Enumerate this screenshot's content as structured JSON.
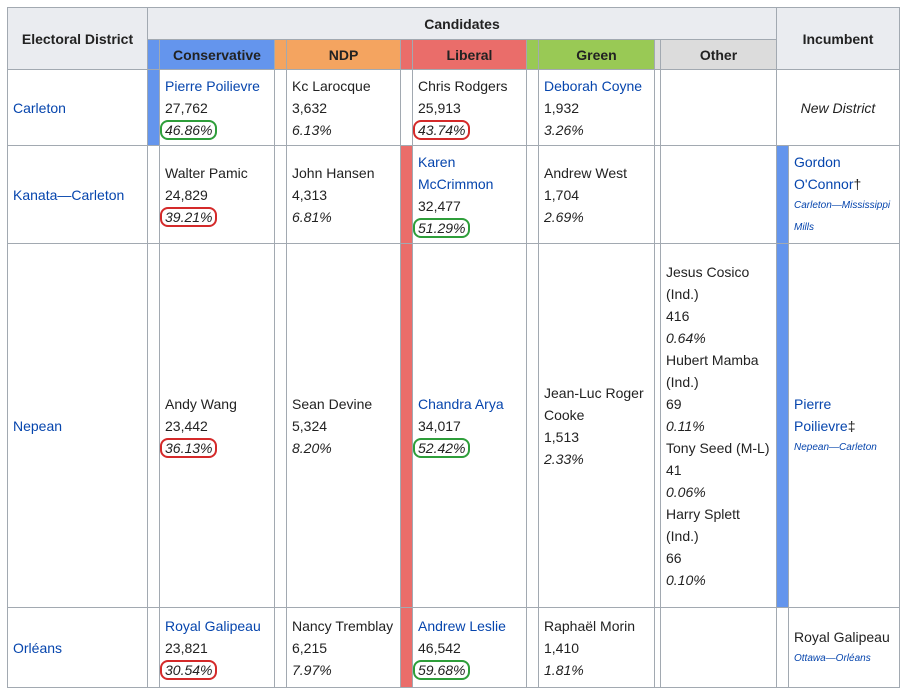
{
  "header": {
    "district": "Electoral District",
    "group": "Candidates",
    "incumbent": "Incumbent",
    "parties": [
      {
        "name": "Conservative",
        "color": "#6495ed"
      },
      {
        "name": "NDP",
        "color": "#f4a460"
      },
      {
        "name": "Liberal",
        "color": "#ea6d6a"
      },
      {
        "name": "Green",
        "color": "#99c955"
      },
      {
        "name": "Other",
        "color": "#dcdcdc"
      }
    ]
  },
  "rows": [
    {
      "district": "Carleton",
      "winner": "Conservative",
      "candidates": [
        [
          {
            "name": "Pierre Poilievre",
            "link": true,
            "votes": "27,762",
            "percent": "46.86%",
            "circle": "green"
          }
        ],
        [
          {
            "name": "Kc Larocque",
            "votes": "3,632",
            "percent": "6.13%"
          }
        ],
        [
          {
            "name": "Chris Rodgers",
            "votes": "25,913",
            "percent": "43.74%",
            "circle": "red"
          }
        ],
        [
          {
            "name": "Deborah Coyne",
            "link": true,
            "votes": "1,932",
            "percent": "3.26%"
          }
        ],
        []
      ],
      "incumbent": {
        "note": "New District"
      }
    },
    {
      "district": "Kanata—Carleton",
      "winner": "Liberal",
      "candidates": [
        [
          {
            "name": "Walter Pamic",
            "votes": "24,829",
            "percent": "39.21%",
            "circle": "red"
          }
        ],
        [
          {
            "name": "John Hansen",
            "votes": "4,313",
            "percent": "6.81%"
          }
        ],
        [
          {
            "name": "Karen McCrimmon",
            "link": true,
            "votes": "32,477",
            "percent": "51.29%",
            "circle": "green"
          }
        ],
        [
          {
            "name": "Andrew West",
            "votes": "1,704",
            "percent": "2.69%"
          }
        ],
        []
      ],
      "incumbent": {
        "name": "Gordon O'Connor",
        "symbol": "†",
        "riding": "Carleton—Mississippi Mills",
        "party": "Conservative"
      }
    },
    {
      "district": "Nepean",
      "winner": "Liberal",
      "candidates": [
        [
          {
            "name": "Andy Wang",
            "votes": "23,442",
            "percent": "36.13%",
            "circle": "red"
          }
        ],
        [
          {
            "name": "Sean Devine",
            "votes": "5,324",
            "percent": "8.20%"
          }
        ],
        [
          {
            "name": "Chandra Arya",
            "link": true,
            "votes": "34,017",
            "percent": "52.42%",
            "circle": "green"
          }
        ],
        [
          {
            "name": "Jean-Luc Roger Cooke",
            "votes": "1,513",
            "percent": "2.33%"
          }
        ],
        [
          {
            "name": "Jesus Cosico (Ind.)",
            "votes": "416",
            "percent": "0.64%"
          },
          {
            "name": "Hubert Mamba (Ind.)",
            "votes": "69",
            "percent": "0.11%"
          },
          {
            "name": "Tony Seed (M-L)",
            "votes": "41",
            "percent": "0.06%"
          },
          {
            "name": "Harry Splett (Ind.)",
            "votes": "66",
            "percent": "0.10%"
          }
        ]
      ],
      "incumbent": {
        "name": "Pierre Poilievre",
        "symbol": "‡",
        "riding": "Nepean—Carleton",
        "party": "Conservative"
      }
    },
    {
      "district": "Orléans",
      "winner": "Liberal",
      "candidates": [
        [
          {
            "name": "Royal Galipeau",
            "link": true,
            "votes": "23,821",
            "percent": "30.54%",
            "circle": "red"
          }
        ],
        [
          {
            "name": "Nancy Tremblay",
            "votes": "6,215",
            "percent": "7.97%"
          }
        ],
        [
          {
            "name": "Andrew Leslie",
            "link": true,
            "votes": "46,542",
            "percent": "59.68%",
            "circle": "green"
          }
        ],
        [
          {
            "name": "Raphaël Morin",
            "votes": "1,410",
            "percent": "1.81%"
          }
        ],
        []
      ],
      "incumbent": {
        "name": "Royal Galipeau",
        "plain": true,
        "riding": "Ottawa—Orléans"
      }
    }
  ]
}
